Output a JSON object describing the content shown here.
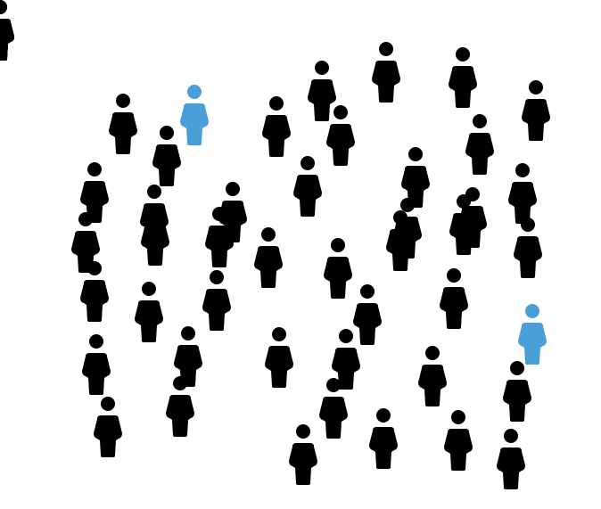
{
  "colors": {
    "background": "#ffffff",
    "person_default": "#000000",
    "person_highlight": "#4a9fd8"
  },
  "icon": "person-icon",
  "people": [
    {
      "highlighted": false
    },
    {
      "highlighted": false
    },
    {
      "highlighted": false
    },
    {
      "highlighted": false
    },
    {
      "highlighted": false
    },
    {
      "highlighted": false
    },
    {
      "highlighted": true
    },
    {
      "highlighted": false
    },
    {
      "highlighted": false
    },
    {
      "highlighted": false
    },
    {
      "highlighted": false
    },
    {
      "highlighted": false
    },
    {
      "highlighted": false
    },
    {
      "highlighted": false
    },
    {
      "highlighted": false
    },
    {
      "highlighted": false
    },
    {
      "highlighted": false
    },
    {
      "highlighted": false
    },
    {
      "highlighted": false
    },
    {
      "highlighted": false
    },
    {
      "highlighted": false
    },
    {
      "highlighted": false
    },
    {
      "highlighted": false
    },
    {
      "highlighted": false
    },
    {
      "highlighted": false
    },
    {
      "highlighted": false
    },
    {
      "highlighted": true
    },
    {
      "highlighted": false
    },
    {
      "highlighted": false
    },
    {
      "highlighted": false
    },
    {
      "highlighted": false
    },
    {
      "highlighted": false
    },
    {
      "highlighted": false
    },
    {
      "highlighted": false
    },
    {
      "highlighted": false
    },
    {
      "highlighted": false
    },
    {
      "highlighted": false
    },
    {
      "highlighted": false
    },
    {
      "highlighted": false
    },
    {
      "highlighted": false
    },
    {
      "highlighted": false
    },
    {
      "highlighted": false
    },
    {
      "highlighted": false
    },
    {
      "highlighted": false
    },
    {
      "highlighted": false
    },
    {
      "highlighted": false
    },
    {
      "highlighted": false
    },
    {
      "highlighted": false
    },
    {
      "highlighted": false
    }
  ]
}
